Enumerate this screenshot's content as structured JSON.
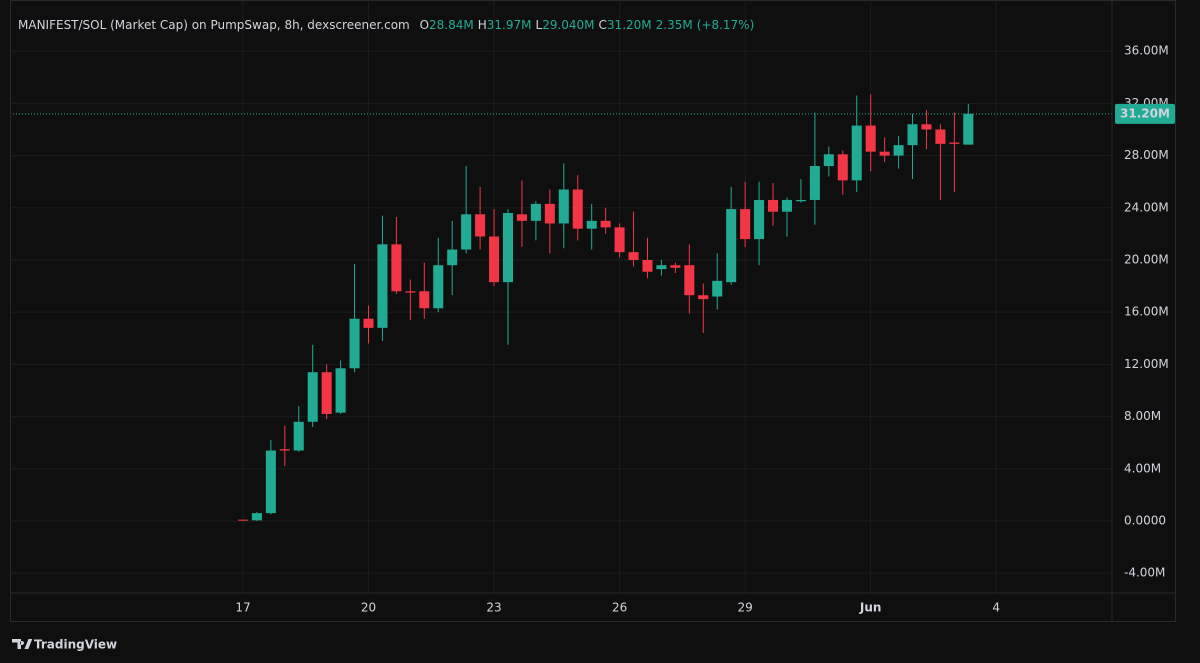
{
  "chart_data": {
    "type": "candlestick",
    "title": "MANIFEST/SOL (Market Cap) on PumpSwap, 8h, dexscreener.com",
    "ohlc_legend": [
      {
        "key": "O",
        "value": "28.84M"
      },
      {
        "key": "H",
        "value": "31.97M"
      },
      {
        "key": "L",
        "value": "29.040M"
      },
      {
        "key": "C",
        "value": "31.20M"
      }
    ],
    "volume": "2.35M",
    "change": "(+8.17%)",
    "up_color": "#22ab94",
    "down_color": "#f23645",
    "x": [
      0,
      1,
      2,
      3,
      4,
      5,
      6,
      7,
      8,
      9,
      10,
      11,
      12,
      13,
      14,
      15,
      16,
      17,
      18,
      19,
      20,
      21,
      22,
      23,
      24,
      25,
      26,
      27,
      28,
      29,
      30,
      31,
      32,
      33,
      34,
      35,
      36,
      37,
      38,
      39,
      40,
      41,
      42,
      43,
      44,
      45,
      46,
      47,
      48,
      49,
      50,
      51,
      52
    ],
    "open": [
      0.1,
      0.05,
      0.6,
      5.5,
      5.4,
      7.6,
      11.4,
      8.3,
      11.7,
      15.5,
      14.8,
      21.2,
      17.6,
      17.6,
      16.3,
      19.6,
      20.8,
      23.5,
      21.8,
      18.3,
      23.5,
      23.0,
      24.3,
      22.8,
      25.4,
      22.4,
      23.0,
      22.5,
      20.6,
      20.0,
      19.3,
      19.6,
      19.6,
      17.3,
      17.2,
      18.3,
      23.9,
      21.6,
      24.6,
      23.7,
      24.5,
      24.6,
      27.2,
      28.1,
      26.1,
      30.3,
      28.3,
      28.0,
      28.8,
      30.4,
      30.0,
      29.0,
      28.84
    ],
    "high": [
      0.1,
      0.7,
      6.2,
      7.3,
      8.8,
      13.5,
      12.0,
      12.3,
      19.7,
      16.5,
      23.4,
      23.3,
      18.5,
      19.8,
      21.7,
      23.0,
      27.2,
      25.6,
      23.9,
      23.9,
      26.1,
      24.5,
      25.4,
      27.4,
      26.5,
      24.3,
      24.0,
      22.8,
      23.7,
      21.7,
      20.0,
      19.8,
      21.2,
      18.2,
      20.5,
      25.6,
      26.0,
      26.0,
      25.9,
      24.8,
      26.2,
      31.3,
      28.7,
      28.4,
      32.6,
      32.7,
      29.4,
      29.5,
      31.2,
      31.5,
      30.4,
      31.3,
      31.97
    ],
    "low": [
      0,
      0,
      0.5,
      4.2,
      5.3,
      7.2,
      7.8,
      8.2,
      11.4,
      13.6,
      13.8,
      17.4,
      15.4,
      15.5,
      16.0,
      17.3,
      20.5,
      20.8,
      18.0,
      13.5,
      21.0,
      21.5,
      20.5,
      20.9,
      21.5,
      20.8,
      22.0,
      20.2,
      19.5,
      18.6,
      18.8,
      19.0,
      15.9,
      14.4,
      16.2,
      18.1,
      21.0,
      19.6,
      22.6,
      21.8,
      24.4,
      22.7,
      26.4,
      25.0,
      25.2,
      26.8,
      27.5,
      27.0,
      26.2,
      28.5,
      24.6,
      25.2,
      29.04
    ],
    "close": [
      0.05,
      0.6,
      5.4,
      5.4,
      7.6,
      11.4,
      8.2,
      11.7,
      15.5,
      14.8,
      21.2,
      17.6,
      17.5,
      16.3,
      19.6,
      20.8,
      23.5,
      21.8,
      18.3,
      23.6,
      23.0,
      24.3,
      22.8,
      25.4,
      22.4,
      23.0,
      22.5,
      20.6,
      20.0,
      19.1,
      19.6,
      19.4,
      17.3,
      17.0,
      18.4,
      23.9,
      21.6,
      24.6,
      23.7,
      24.6,
      24.6,
      27.2,
      28.1,
      26.1,
      30.3,
      28.3,
      28.0,
      28.8,
      30.4,
      30.0,
      28.9,
      28.9,
      31.2
    ],
    "last_price": {
      "value": 31.2,
      "label": "31.20M"
    },
    "xlim": [
      -16.7,
      62.3
    ],
    "xticks": [
      {
        "value": 0,
        "label": "17"
      },
      {
        "value": 9,
        "label": "20"
      },
      {
        "value": 18,
        "label": "23"
      },
      {
        "value": 27,
        "label": "26"
      },
      {
        "value": 36,
        "label": "29"
      },
      {
        "value": 45,
        "label": "Jun"
      },
      {
        "value": 54,
        "label": "4"
      }
    ],
    "ylim": [
      -5.52,
      39.77
    ],
    "yticks": [
      {
        "value": -4,
        "label": "-4.00M"
      },
      {
        "value": 0,
        "label": "0.0000"
      },
      {
        "value": 4,
        "label": "4.00M"
      },
      {
        "value": 8,
        "label": "8.00M"
      },
      {
        "value": 12,
        "label": "12.00M"
      },
      {
        "value": 16,
        "label": "16.00M"
      },
      {
        "value": 20,
        "label": "20.00M"
      },
      {
        "value": 24,
        "label": "24.00M"
      },
      {
        "value": 28,
        "label": "28.00M"
      },
      {
        "value": 32,
        "label": "32.00M"
      },
      {
        "value": 36,
        "label": "36.00M"
      }
    ],
    "grid": true,
    "footer": "TradingView"
  }
}
